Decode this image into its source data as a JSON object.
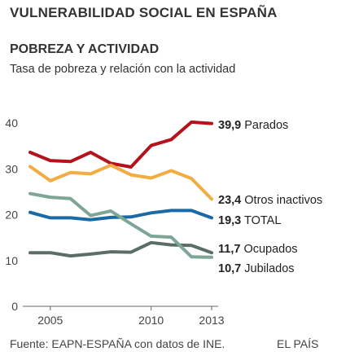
{
  "header": {
    "title": "VULNERABILIDAD SOCIAL EN ESPAÑA",
    "subtitle": "POBREZA Y ACTIVIDAD",
    "description": "Tasa de pobreza y relación con la actividad"
  },
  "footer": {
    "source": "Fuente: EAPN-ESPAÑA con datos de INE.",
    "brand": "EL PAÍS"
  },
  "chart_data": {
    "type": "line",
    "x": [
      2004,
      2005,
      2006,
      2007,
      2008,
      2009,
      2010,
      2011,
      2012,
      2013
    ],
    "x_ticks": [
      "2005",
      "2010",
      "2013"
    ],
    "y_ticks": [
      "0",
      "10",
      "20",
      "30",
      "40"
    ],
    "ylim": [
      0,
      40
    ],
    "grid": false,
    "legend": "end-of-line labels",
    "series": [
      {
        "name": "Parados",
        "end_label": "39,9",
        "color": "#b5121b",
        "values": [
          33.6,
          31.8,
          31.6,
          33.6,
          31.2,
          30.4,
          35.1,
          36.4,
          40.2,
          39.9
        ]
      },
      {
        "name": "Otros inactivos",
        "end_label": "23,4",
        "color": "#f2ac42",
        "values": [
          30.5,
          27.4,
          29.2,
          28.9,
          30.8,
          28.7,
          28.0,
          29.6,
          27.9,
          23.4
        ]
      },
      {
        "name": "TOTAL",
        "end_label": "19,3",
        "color": "#1a6aa6",
        "values": [
          20.5,
          19.3,
          19.3,
          18.9,
          19.4,
          19.5,
          20.4,
          20.9,
          20.9,
          19.3
        ]
      },
      {
        "name": "Ocupados",
        "end_label": "11,7",
        "color": "#5a6e66",
        "values": [
          11.7,
          11.7,
          11.0,
          11.4,
          11.9,
          11.8,
          13.9,
          13.4,
          13.3,
          11.7
        ]
      },
      {
        "name": "Jubilados",
        "end_label": "10,7",
        "color": "#7da694",
        "values": [
          24.6,
          23.8,
          23.5,
          19.8,
          20.8,
          18.0,
          15.3,
          15.1,
          10.8,
          10.7
        ]
      }
    ]
  }
}
